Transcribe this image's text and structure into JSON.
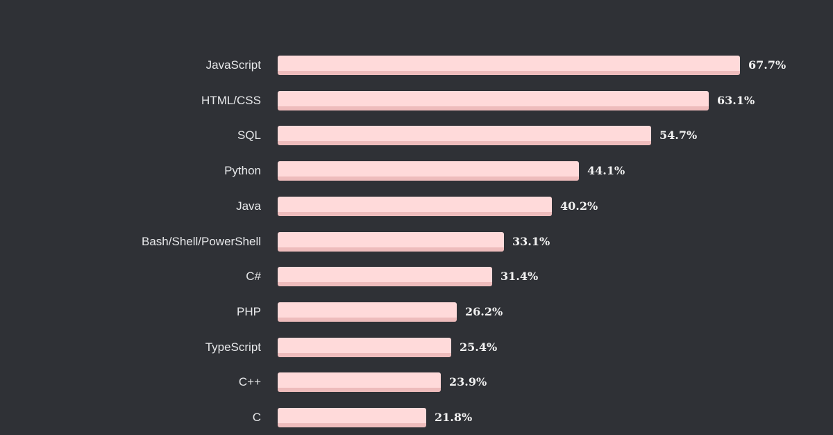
{
  "chart_data": {
    "type": "bar",
    "orientation": "horizontal",
    "categories": [
      "JavaScript",
      "HTML/CSS",
      "SQL",
      "Python",
      "Java",
      "Bash/Shell/PowerShell",
      "C#",
      "PHP",
      "TypeScript",
      "C++",
      "C"
    ],
    "values": [
      67.7,
      63.1,
      54.7,
      44.1,
      40.2,
      33.1,
      31.4,
      26.2,
      25.4,
      23.9,
      21.8
    ],
    "value_labels": [
      "67.7%",
      "63.1%",
      "54.7%",
      "44.1%",
      "40.2%",
      "33.1%",
      "31.4%",
      "26.2%",
      "25.4%",
      "23.9%",
      "21.8%"
    ],
    "unit": "%",
    "xlim": [
      0,
      100
    ],
    "grid": false,
    "legend": "none",
    "colors": {
      "background": "#2f3136",
      "bar": "#ffdada",
      "bar_shadow": "#eebcbc",
      "category_text": "#e7e8ea",
      "value_text": "#f2f2f2"
    }
  }
}
